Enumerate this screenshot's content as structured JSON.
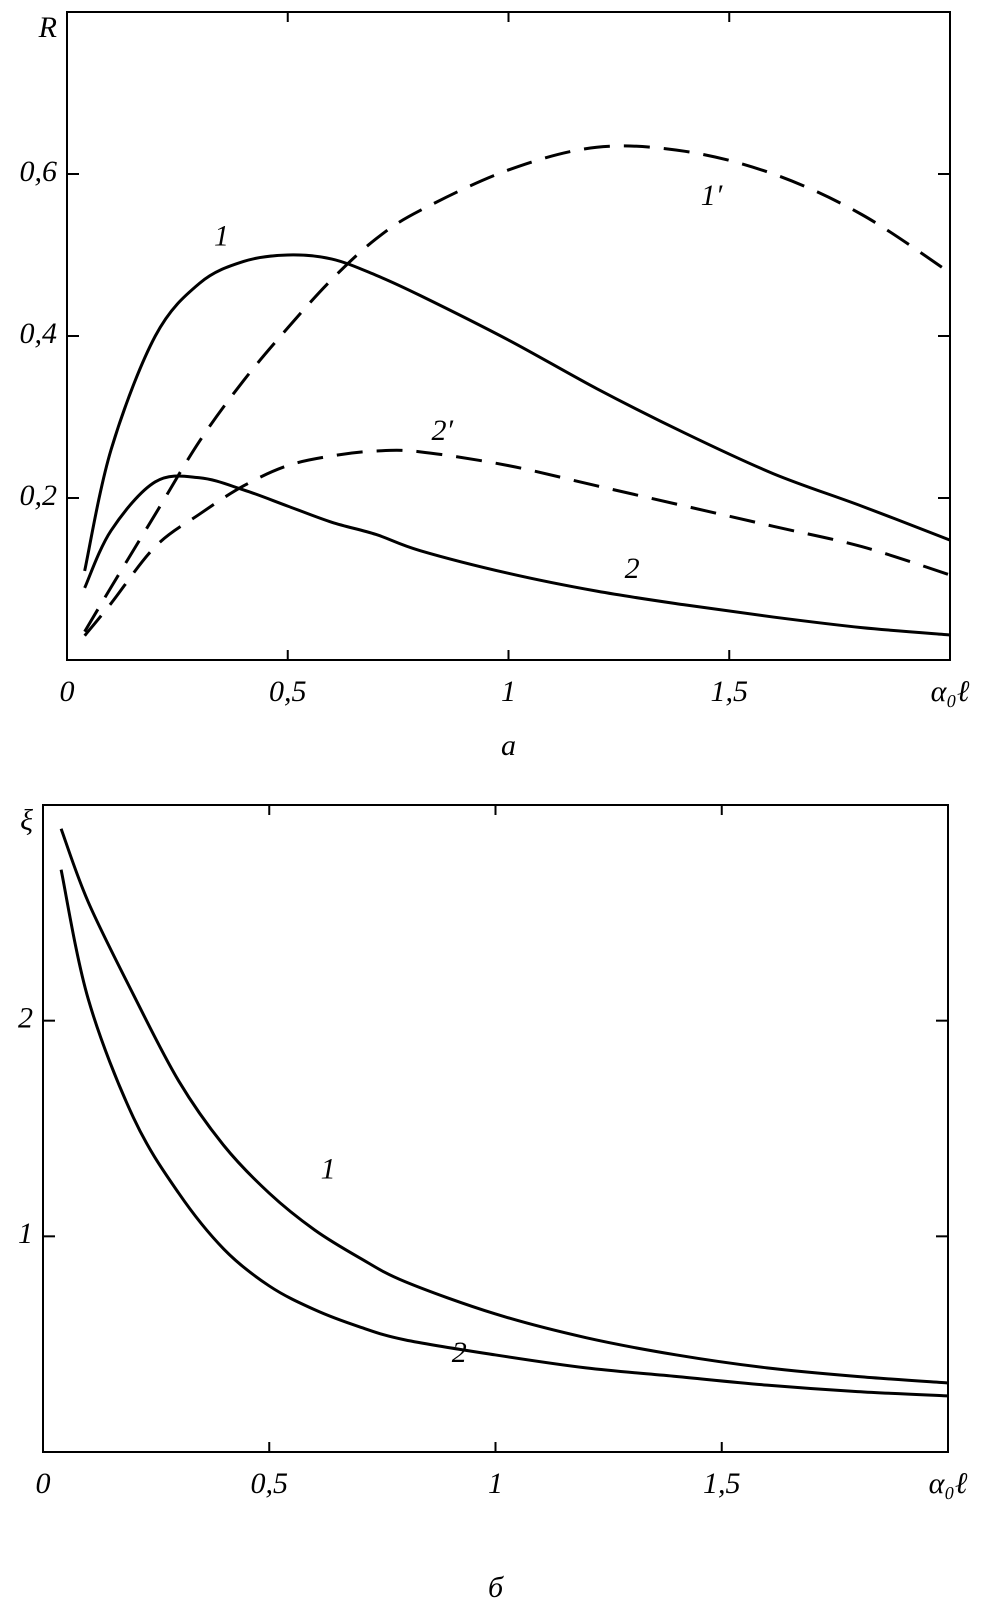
{
  "chart_data": [
    {
      "type": "line",
      "caption": "а",
      "xlabel": "α₀ℓ",
      "ylabel": "R",
      "xlim": [
        0,
        2
      ],
      "ylim": [
        0,
        0.8
      ],
      "xticks": [
        0,
        {
          "value": 0.5,
          "label": "0,5"
        },
        1,
        {
          "value": 1.5,
          "label": "1,5"
        }
      ],
      "yticks": [
        {
          "value": 0.2,
          "label": "0,2"
        },
        {
          "value": 0.4,
          "label": "0,4"
        },
        {
          "value": 0.6,
          "label": "0,6"
        }
      ],
      "x": [
        0.04,
        0.1,
        0.2,
        0.3,
        0.4,
        0.5,
        0.6,
        0.7,
        0.8,
        1.0,
        1.2,
        1.4,
        1.6,
        1.8,
        2.0
      ],
      "series": [
        {
          "name": "1",
          "color": "#000000",
          "dash": false,
          "values": [
            0.11,
            0.26,
            0.4,
            0.465,
            0.492,
            0.5,
            0.495,
            0.475,
            0.45,
            0.395,
            0.335,
            0.28,
            0.23,
            0.19,
            0.148
          ]
        },
        {
          "name": "1′",
          "color": "#000000",
          "dash": true,
          "values": [
            0.035,
            0.09,
            0.18,
            0.27,
            0.345,
            0.41,
            0.47,
            0.52,
            0.555,
            0.605,
            0.633,
            0.628,
            0.6,
            0.55,
            0.478
          ]
        },
        {
          "name": "2",
          "color": "#000000",
          "dash": false,
          "values": [
            0.089,
            0.16,
            0.22,
            0.225,
            0.21,
            0.19,
            0.17,
            0.155,
            0.135,
            0.107,
            0.085,
            0.068,
            0.053,
            0.04,
            0.031
          ]
        },
        {
          "name": "2′",
          "color": "#000000",
          "dash": true,
          "values": [
            0.03,
            0.07,
            0.14,
            0.18,
            0.215,
            0.24,
            0.252,
            0.258,
            0.257,
            0.24,
            0.215,
            0.19,
            0.165,
            0.14,
            0.105
          ]
        }
      ]
    },
    {
      "type": "line",
      "caption": "б",
      "xlabel": "α₀ℓ",
      "ylabel": "ξ",
      "xlim": [
        0,
        2
      ],
      "ylim": [
        0,
        3
      ],
      "xticks": [
        0,
        {
          "value": 0.5,
          "label": "0,5"
        },
        1,
        {
          "value": 1.5,
          "label": "1,5"
        }
      ],
      "yticks": [
        1,
        2
      ],
      "x": [
        0.04,
        0.1,
        0.2,
        0.3,
        0.4,
        0.5,
        0.6,
        0.7,
        0.8,
        1.0,
        1.2,
        1.4,
        1.6,
        1.8,
        2.0
      ],
      "series": [
        {
          "name": "1",
          "color": "#000000",
          "dash": false,
          "values": [
            2.89,
            2.55,
            2.12,
            1.72,
            1.42,
            1.2,
            1.03,
            0.9,
            0.79,
            0.64,
            0.53,
            0.45,
            0.39,
            0.35,
            0.32
          ]
        },
        {
          "name": "2",
          "color": "#000000",
          "dash": false,
          "values": [
            2.7,
            2.1,
            1.55,
            1.2,
            0.94,
            0.77,
            0.66,
            0.58,
            0.52,
            0.45,
            0.39,
            0.35,
            0.31,
            0.28,
            0.26
          ]
        }
      ]
    }
  ]
}
